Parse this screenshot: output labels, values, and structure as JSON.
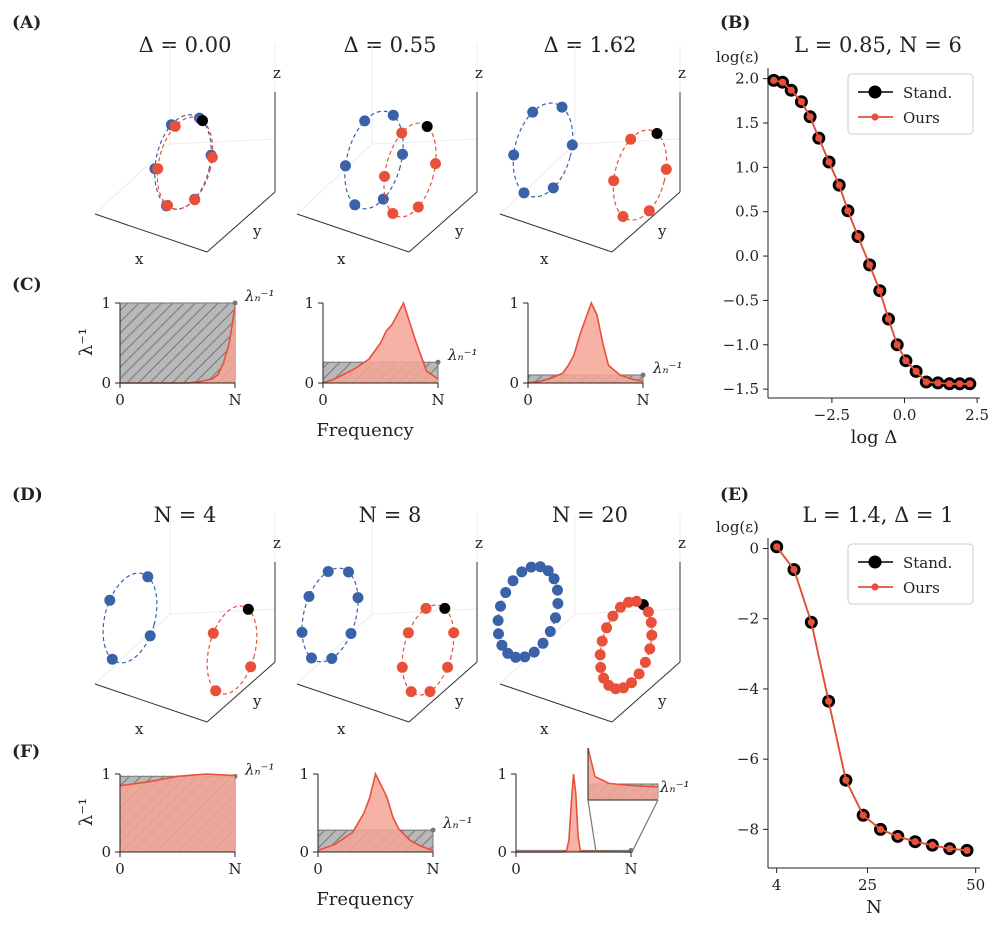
{
  "panels": {
    "A": {
      "label": "(A)",
      "titles": [
        "Δ = 0.00",
        "Δ = 0.55",
        "Δ = 1.62"
      ],
      "axis_labels": {
        "x": "x",
        "y": "y",
        "z": "z"
      }
    },
    "C": {
      "label": "(C)",
      "ylabel": "λ⁻¹",
      "xlabel": "Frequency",
      "xticks": [
        "0",
        "N"
      ],
      "yticks": [
        "0",
        "1"
      ],
      "lambda_label": "λₙ⁻¹"
    },
    "D": {
      "label": "(D)",
      "titles": [
        "N = 4",
        "N = 8",
        "N = 20"
      ],
      "axis_labels": {
        "x": "x",
        "y": "y",
        "z": "z"
      }
    },
    "F": {
      "label": "(F)",
      "ylabel": "λ⁻¹",
      "xlabel": "Frequency",
      "xticks": [
        "0",
        "N"
      ],
      "yticks": [
        "0",
        "1"
      ],
      "lambda_label": "λₙ⁻¹"
    },
    "B": {
      "label": "(B)"
    },
    "E": {
      "label": "(E)"
    }
  },
  "colors": {
    "blue": "#3a62a8",
    "red": "#e8503a",
    "black": "#000000",
    "redfill": "#f6a597",
    "gray": "#9a9a9a"
  },
  "chart_data": [
    {
      "id": "B",
      "type": "line",
      "title": "L = 0.85, N = 6",
      "ylabel": "log(ε)",
      "xlabel": "log Δ",
      "xlim": [
        -4.7,
        2.6
      ],
      "ylim": [
        -1.6,
        2.12
      ],
      "xticks": [
        -2.5,
        0.0,
        2.5
      ],
      "xtick_labels": [
        "−2.5",
        "0.0",
        "2.5"
      ],
      "yticks": [
        2.0,
        1.5,
        1.0,
        0.5,
        0.0,
        -0.5,
        -1.0,
        -1.5
      ],
      "ytick_labels": [
        "2.0",
        "1.5",
        "1.0",
        "0.5",
        "0.0",
        "−0.5",
        "−1.0",
        "−1.5"
      ],
      "legend": [
        "Stand.",
        "Ours"
      ],
      "series": [
        {
          "name": "Stand.",
          "x": [
            -4.5,
            -4.2,
            -3.9,
            -3.55,
            -3.25,
            -2.95,
            -2.6,
            -2.25,
            -1.95,
            -1.6,
            -1.2,
            -0.85,
            -0.55,
            -0.25,
            0.05,
            0.4,
            0.75,
            1.15,
            1.55,
            1.9,
            2.25
          ],
          "y": [
            1.98,
            1.96,
            1.87,
            1.74,
            1.57,
            1.33,
            1.06,
            0.8,
            0.51,
            0.22,
            -0.1,
            -0.39,
            -0.71,
            -1.0,
            -1.18,
            -1.3,
            -1.42,
            -1.43,
            -1.44,
            -1.44,
            -1.44
          ]
        },
        {
          "name": "Ours",
          "x": [
            -4.5,
            -4.2,
            -3.9,
            -3.55,
            -3.25,
            -2.95,
            -2.6,
            -2.25,
            -1.95,
            -1.6,
            -1.2,
            -0.85,
            -0.55,
            -0.25,
            0.05,
            0.4,
            0.75,
            1.15,
            1.55,
            1.9,
            2.25
          ],
          "y": [
            1.98,
            1.96,
            1.87,
            1.74,
            1.57,
            1.33,
            1.06,
            0.8,
            0.51,
            0.22,
            -0.1,
            -0.39,
            -0.71,
            -1.0,
            -1.18,
            -1.3,
            -1.42,
            -1.43,
            -1.44,
            -1.44,
            -1.44
          ]
        }
      ]
    },
    {
      "id": "E",
      "type": "line",
      "title": "L = 1.4, Δ = 1",
      "ylabel": "log(ε)",
      "xlabel": "N",
      "xlim": [
        2,
        51
      ],
      "ylim": [
        -9.1,
        0.3
      ],
      "xticks": [
        4,
        25,
        50
      ],
      "xtick_labels": [
        "4",
        "25",
        "50"
      ],
      "yticks": [
        0,
        -2,
        -4,
        -6,
        -8
      ],
      "ytick_labels": [
        "0",
        "−2",
        "−4",
        "−6",
        "−8"
      ],
      "legend": [
        "Stand.",
        "Ours"
      ],
      "series": [
        {
          "name": "Stand.",
          "x": [
            4,
            8,
            12,
            16,
            20,
            24,
            28,
            32,
            36,
            40,
            44,
            48
          ],
          "y": [
            0.05,
            -0.6,
            -2.1,
            -4.35,
            -6.6,
            -7.6,
            -8.0,
            -8.2,
            -8.35,
            -8.45,
            -8.55,
            -8.6
          ]
        },
        {
          "name": "Ours",
          "x": [
            4,
            8,
            12,
            16,
            20,
            24,
            28,
            32,
            36,
            40,
            44,
            48
          ],
          "y": [
            0.05,
            -0.6,
            -2.1,
            -4.35,
            -6.6,
            -7.6,
            -8.0,
            -8.2,
            -8.35,
            -8.45,
            -8.55,
            -8.6
          ]
        }
      ]
    },
    {
      "id": "C",
      "type": "area",
      "xlabel": "Frequency",
      "ylabel": "λ⁻¹",
      "plots": [
        {
          "lambda_N_inv": 1.0,
          "x": [
            0,
            0.2,
            0.4,
            0.6,
            0.7,
            0.8,
            0.85,
            0.9,
            0.95,
            1.0
          ],
          "y": [
            0,
            0,
            0,
            0,
            0.02,
            0.05,
            0.1,
            0.25,
            0.5,
            0.95
          ]
        },
        {
          "lambda_N_inv": 0.26,
          "x": [
            0,
            0.1,
            0.2,
            0.3,
            0.4,
            0.5,
            0.55,
            0.6,
            0.7,
            0.8,
            0.9,
            1.0
          ],
          "y": [
            0,
            0.05,
            0.12,
            0.2,
            0.3,
            0.5,
            0.65,
            0.73,
            1.0,
            0.55,
            0.15,
            0.05
          ]
        },
        {
          "lambda_N_inv": 0.1,
          "x": [
            0,
            0.1,
            0.2,
            0.3,
            0.35,
            0.4,
            0.45,
            0.5,
            0.55,
            0.6,
            0.65,
            0.7,
            0.8,
            0.9,
            1.0
          ],
          "y": [
            0,
            0.02,
            0.06,
            0.12,
            0.22,
            0.35,
            0.6,
            0.8,
            1.0,
            0.85,
            0.5,
            0.22,
            0.1,
            0.05,
            0.02
          ]
        }
      ]
    },
    {
      "id": "F",
      "type": "area",
      "xlabel": "Frequency",
      "ylabel": "λ⁻¹",
      "plots": [
        {
          "lambda_N_inv": 0.97,
          "x": [
            0,
            0.25,
            0.5,
            0.75,
            1.0
          ],
          "y": [
            0.85,
            0.9,
            0.97,
            1.0,
            0.98
          ]
        },
        {
          "lambda_N_inv": 0.28,
          "x": [
            0,
            0.15,
            0.3,
            0.4,
            0.45,
            0.5,
            0.55,
            0.6,
            0.65,
            0.7,
            0.8,
            0.9,
            1.0
          ],
          "y": [
            0.02,
            0.1,
            0.25,
            0.5,
            0.7,
            1.0,
            0.85,
            0.7,
            0.45,
            0.3,
            0.15,
            0.07,
            0.02
          ]
        },
        {
          "lambda_N_inv": 0.02,
          "x": [
            0,
            0.4,
            0.44,
            0.46,
            0.48,
            0.5,
            0.52,
            0.54,
            0.56,
            1.0
          ],
          "y": [
            0,
            0,
            0.02,
            0.15,
            0.6,
            1.0,
            0.75,
            0.2,
            0.01,
            0
          ]
        }
      ]
    }
  ]
}
